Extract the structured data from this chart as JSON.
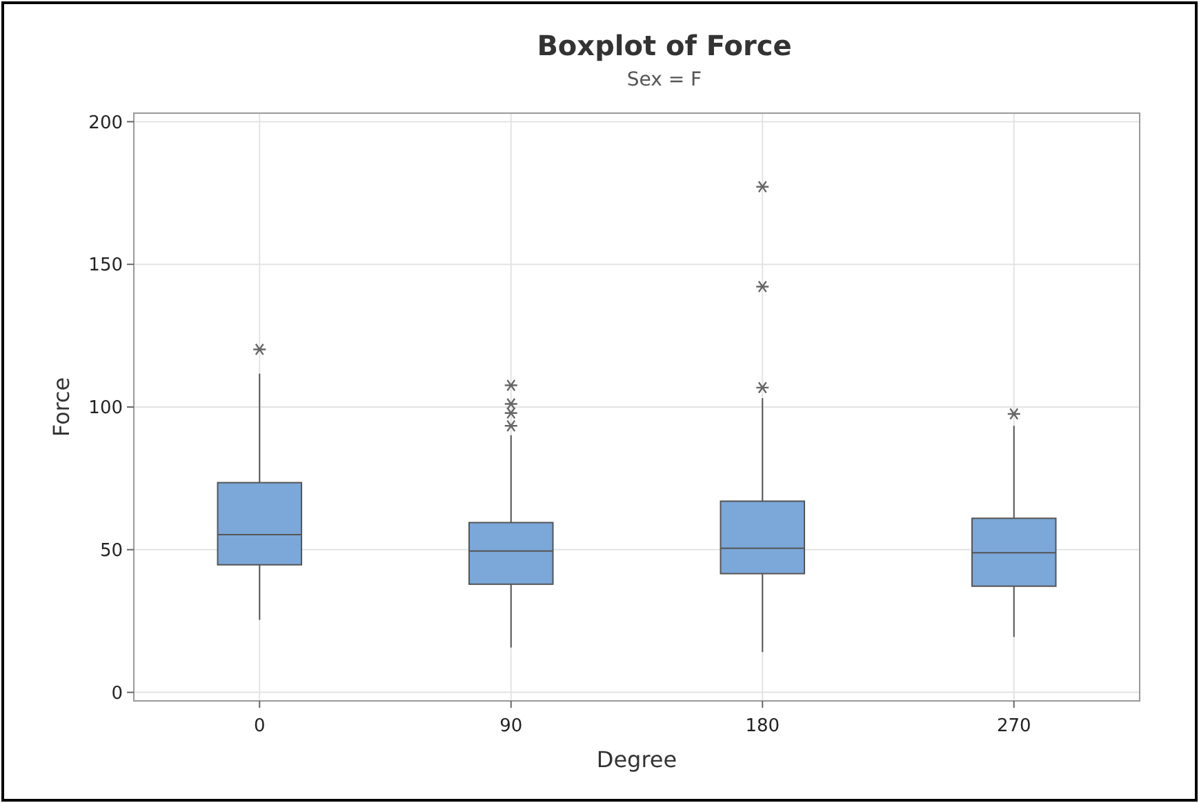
{
  "chart_data": {
    "type": "box",
    "title": "Boxplot of Force",
    "subtitle": "Sex = F",
    "xlabel": "Degree",
    "ylabel": "Force",
    "categories": [
      "0",
      "90",
      "180",
      "270"
    ],
    "color": "#7ba7d9",
    "boxes": [
      {
        "low": 25.4,
        "q1": 44.7,
        "median": 55.3,
        "q3": 73.5,
        "high": 111.7,
        "outliers": [
          120.2
        ]
      },
      {
        "low": 15.7,
        "q1": 37.9,
        "median": 49.5,
        "q3": 59.5,
        "high": 90.1,
        "outliers": [
          93.4,
          97.9,
          101.1,
          107.6
        ]
      },
      {
        "low": 14.1,
        "q1": 41.6,
        "median": 50.5,
        "q3": 67,
        "high": 103.1,
        "outliers": [
          106.8,
          142.2,
          177.2
        ]
      },
      {
        "low": 19.4,
        "q1": 37.2,
        "median": 48.9,
        "q3": 61,
        "high": 93.4,
        "outliers": [
          97.6
        ]
      }
    ],
    "ylim": [
      -3,
      203
    ],
    "yticks": [
      0,
      50,
      100,
      150,
      200
    ],
    "grid": true
  }
}
